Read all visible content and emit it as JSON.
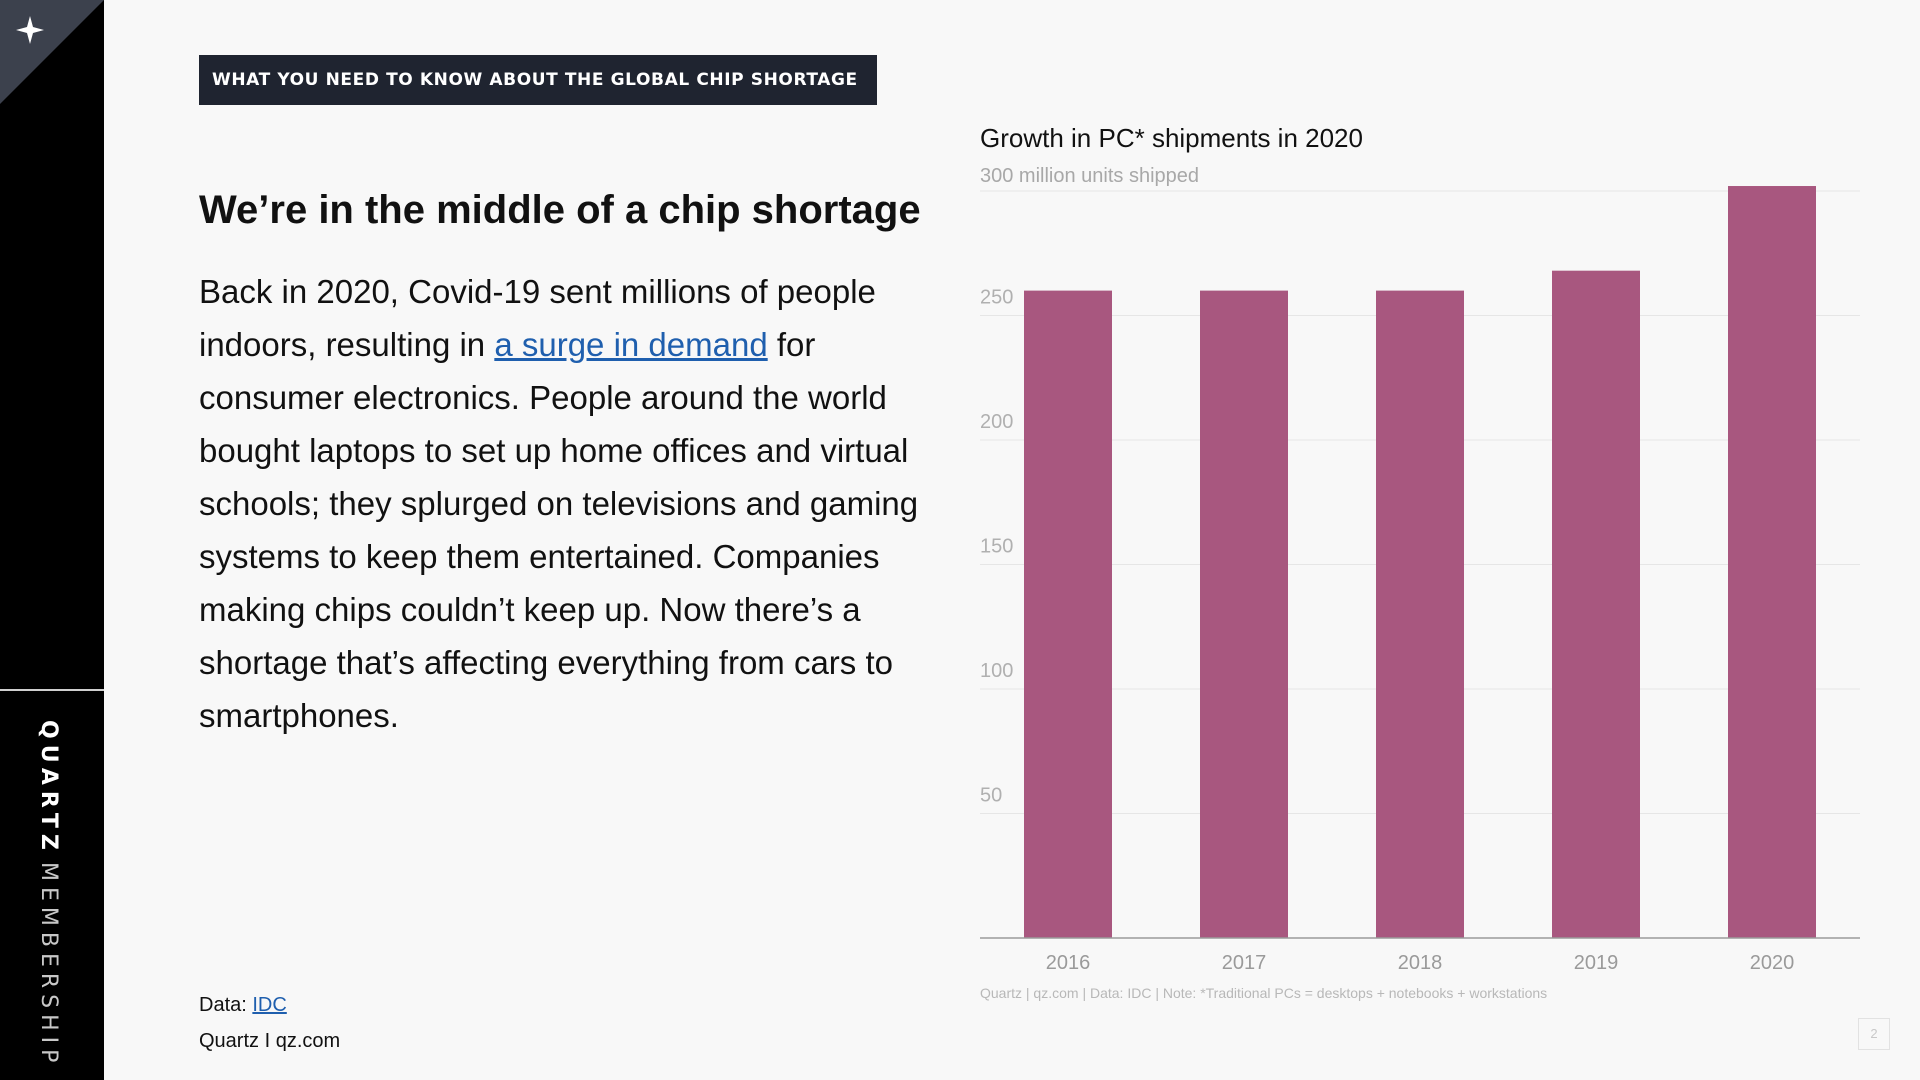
{
  "header": {
    "kicker": "WHAT YOU NEED TO KNOW ABOUT THE GLOBAL CHIP SHORTAGE"
  },
  "sidebar": {
    "brand_strong": "QUARTZ",
    "brand_light": "MEMBERSHIP",
    "logo_icon": "sparkle-icon"
  },
  "article": {
    "headline": "We’re in the middle of a chip shortage",
    "body_before_link": "Back in 2020, Covid-19 sent millions of people indoors, resulting in ",
    "body_link": "a surge in demand",
    "body_after_link": " for consumer electronics. People around the world bought laptops to set up home offices and virtual schools; they splurged on televisions and gaming systems to keep them entertained. Companies making chips couldn’t keep up. Now there’s a shortage that’s affecting everything from cars to smartphones."
  },
  "footer": {
    "data_label": "Data: ",
    "data_link": "IDC",
    "source": "Quartz I qz.com",
    "page_number": "2"
  },
  "chart_data": {
    "type": "bar",
    "title": "Growth in PC* shipments in 2020",
    "subtitle": "300 million units shipped",
    "xlabel": "",
    "ylabel": "",
    "categories": [
      "2016",
      "2017",
      "2018",
      "2019",
      "2020"
    ],
    "values": [
      260,
      260,
      260,
      268,
      302
    ],
    "ylim": [
      0,
      300
    ],
    "yticks": [
      50,
      100,
      150,
      200,
      250
    ],
    "grid": true,
    "legend": "none",
    "bar_color": "#a8577f",
    "note": "Quartz | qz.com | Data: IDC | Note: *Traditional PCs = desktops + notebooks + workstations"
  }
}
